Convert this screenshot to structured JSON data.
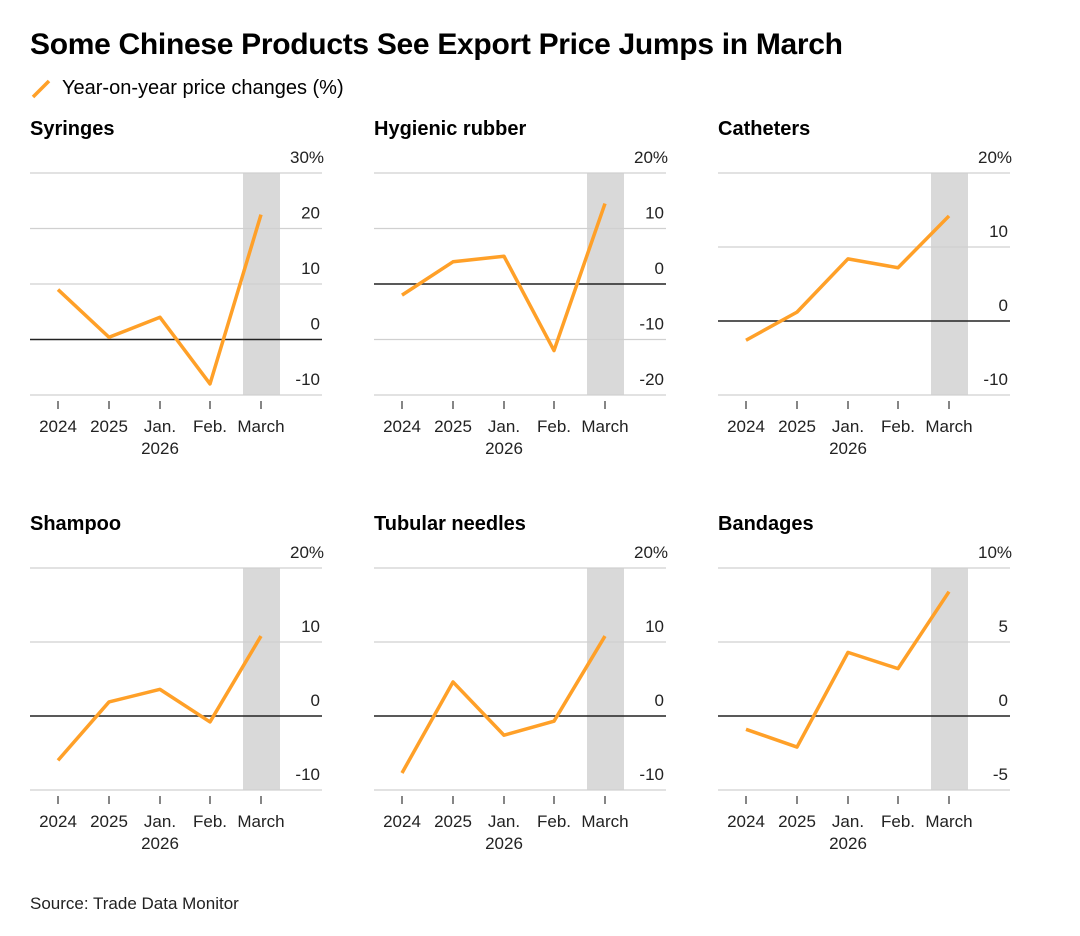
{
  "title": "Some Chinese Products See Export Price Jumps in March",
  "legend": {
    "label": "Year-on-year price changes (%)",
    "color": "#FFA028"
  },
  "source": "Source: Trade Data Monitor",
  "chart_data": [
    {
      "type": "line",
      "title": "Syringes",
      "categories": [
        "2024",
        "2025",
        "Jan. 2026",
        "Feb.",
        "March"
      ],
      "values": [
        9,
        0.4,
        4,
        -8,
        22.5
      ],
      "yticks": [
        "30%",
        "20",
        "10",
        "0",
        "-10"
      ],
      "ytick_values": [
        30,
        20,
        10,
        0,
        -10
      ],
      "ylim": [
        -10,
        30
      ],
      "highlight": "March"
    },
    {
      "type": "line",
      "title": "Hygienic rubber",
      "categories": [
        "2024",
        "2025",
        "Jan. 2026",
        "Feb.",
        "March"
      ],
      "values": [
        -2,
        4,
        5,
        -12,
        14.5
      ],
      "yticks": [
        "20%",
        "10",
        "0",
        "-10",
        "-20"
      ],
      "ytick_values": [
        20,
        10,
        0,
        -10,
        -20
      ],
      "ylim": [
        -20,
        20
      ],
      "highlight": "March"
    },
    {
      "type": "line",
      "title": "Catheters",
      "categories": [
        "2024",
        "2025",
        "Jan. 2026",
        "Feb.",
        "March"
      ],
      "values": [
        -2.6,
        1.2,
        8.4,
        7.2,
        14.2
      ],
      "yticks": [
        "20%",
        "10",
        "0",
        "-10"
      ],
      "ytick_values": [
        20,
        10,
        0,
        -10
      ],
      "ylim": [
        -10,
        20
      ],
      "highlight": "March"
    },
    {
      "type": "line",
      "title": "Shampoo",
      "categories": [
        "2024",
        "2025",
        "Jan. 2026",
        "Feb.",
        "March"
      ],
      "values": [
        -6,
        1.9,
        3.6,
        -0.8,
        10.8
      ],
      "yticks": [
        "20%",
        "10",
        "0",
        "-10"
      ],
      "ytick_values": [
        20,
        10,
        0,
        -10
      ],
      "ylim": [
        -10,
        20
      ],
      "highlight": "March"
    },
    {
      "type": "line",
      "title": "Tubular needles",
      "categories": [
        "2024",
        "2025",
        "Jan. 2026",
        "Feb.",
        "March"
      ],
      "values": [
        -7.7,
        4.6,
        -2.6,
        -0.7,
        10.8
      ],
      "yticks": [
        "20%",
        "10",
        "0",
        "-10"
      ],
      "ytick_values": [
        20,
        10,
        0,
        -10
      ],
      "ylim": [
        -10,
        20
      ],
      "highlight": "March"
    },
    {
      "type": "line",
      "title": "Bandages",
      "categories": [
        "2024",
        "2025",
        "Jan. 2026",
        "Feb.",
        "March"
      ],
      "values": [
        -0.9,
        -2.1,
        4.3,
        3.2,
        8.4
      ],
      "yticks": [
        "10%",
        "5",
        "0",
        "-5"
      ],
      "ytick_values": [
        10,
        5,
        0,
        -5
      ],
      "ylim": [
        -5,
        10
      ],
      "highlight": "March"
    }
  ]
}
